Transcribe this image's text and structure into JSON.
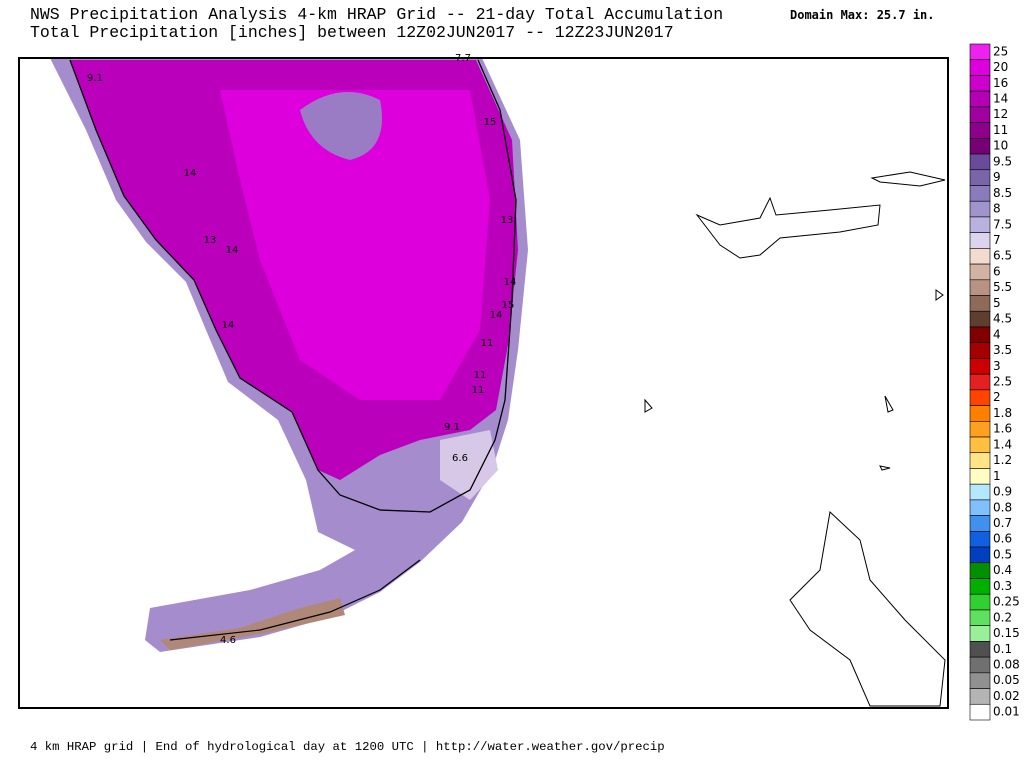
{
  "header": {
    "title_lines": [
      "NWS Precipitation Analysis 4-km HRAP Grid -- 21-day Total Accumulation",
      "Total Precipitation [inches] between 12Z02JUN2017 -- 12Z23JUN2017"
    ],
    "domain_max": "Domain Max: 25.7 in."
  },
  "legend": {
    "items": [
      {
        "label": "25",
        "color": "#ee22ee"
      },
      {
        "label": "20",
        "color": "#dd00dd"
      },
      {
        "label": "16",
        "color": "#cc00cc"
      },
      {
        "label": "14",
        "color": "#b400b4"
      },
      {
        "label": "12",
        "color": "#a000a0"
      },
      {
        "label": "11",
        "color": "#8c008c"
      },
      {
        "label": "10",
        "color": "#760076"
      },
      {
        "label": "9.5",
        "color": "#6a4a9a"
      },
      {
        "label": "9",
        "color": "#7a64aa"
      },
      {
        "label": "8.5",
        "color": "#8a7cba"
      },
      {
        "label": "8",
        "color": "#a094cc"
      },
      {
        "label": "7.5",
        "color": "#bab2de"
      },
      {
        "label": "7",
        "color": "#dcd4ee"
      },
      {
        "label": "6.5",
        "color": "#f2dcd0"
      },
      {
        "label": "6",
        "color": "#d2b2a2"
      },
      {
        "label": "5.5",
        "color": "#b89282"
      },
      {
        "label": "5",
        "color": "#8e6a58"
      },
      {
        "label": "4.5",
        "color": "#5e3e2e"
      },
      {
        "label": "4",
        "color": "#800000"
      },
      {
        "label": "3.5",
        "color": "#a40000"
      },
      {
        "label": "3",
        "color": "#cc0000"
      },
      {
        "label": "2.5",
        "color": "#e42020"
      },
      {
        "label": "2",
        "color": "#ff4400"
      },
      {
        "label": "1.8",
        "color": "#ff8000"
      },
      {
        "label": "1.6",
        "color": "#ffa020"
      },
      {
        "label": "1.4",
        "color": "#ffc040"
      },
      {
        "label": "1.2",
        "color": "#ffe488"
      },
      {
        "label": "1",
        "color": "#fffcc4"
      },
      {
        "label": "0.9",
        "color": "#b4e8ff"
      },
      {
        "label": "0.8",
        "color": "#80c0ff"
      },
      {
        "label": "0.7",
        "color": "#4090f0"
      },
      {
        "label": "0.6",
        "color": "#1060e0"
      },
      {
        "label": "0.5",
        "color": "#0040c0"
      },
      {
        "label": "0.4",
        "color": "#009000"
      },
      {
        "label": "0.3",
        "color": "#00b000"
      },
      {
        "label": "0.25",
        "color": "#30d030"
      },
      {
        "label": "0.2",
        "color": "#60e060"
      },
      {
        "label": "0.15",
        "color": "#98f098"
      },
      {
        "label": "0.1",
        "color": "#505050"
      },
      {
        "label": "0.08",
        "color": "#707070"
      },
      {
        "label": "0.05",
        "color": "#909090"
      },
      {
        "label": "0.02",
        "color": "#b4b4b4"
      },
      {
        "label": "0.01",
        "color": "#ffffff"
      }
    ]
  },
  "map": {
    "contour_labels": [
      "9.1",
      "7.7",
      "15",
      "14",
      "13",
      "13",
      "14",
      "14",
      "15",
      "14",
      "14",
      "11",
      "11",
      "11",
      "9.1",
      "6.6",
      "4.6"
    ]
  },
  "footer": "4 km HRAP grid | End of hydrological day at 1200 UTC | http://water.weather.gov/precip"
}
